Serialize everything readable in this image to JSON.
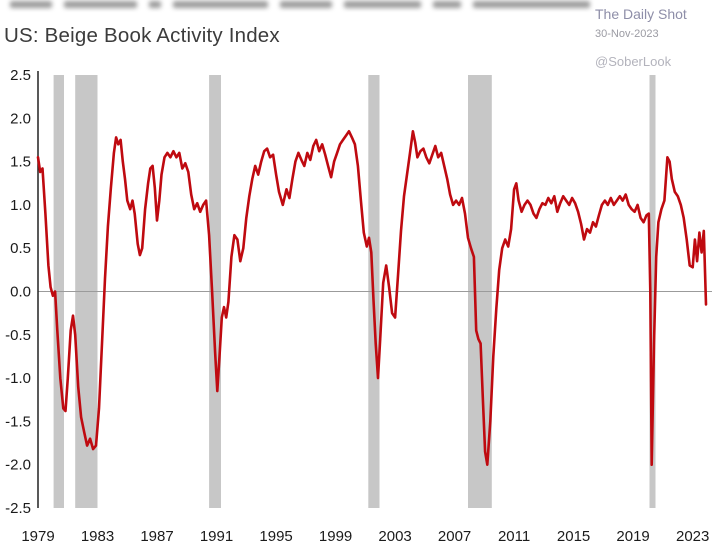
{
  "header": {
    "title": "US: Beige Book Activity Index",
    "source": "The Daily Shot",
    "date": "30-Nov-2023",
    "handle": "@SoberLook"
  },
  "chart_data": {
    "type": "line",
    "title": "US: Beige Book Activity Index",
    "xlabel": "",
    "ylabel": "",
    "xlim": [
      1979,
      2024.3
    ],
    "ylim": [
      -2.5,
      2.5
    ],
    "grid": false,
    "zero_line": true,
    "legend": "none",
    "band_color": "#c7c7c7",
    "x_ticks": [
      {
        "label": "1979",
        "value": 1979
      },
      {
        "label": "1983",
        "value": 1983
      },
      {
        "label": "1987",
        "value": 1987
      },
      {
        "label": "1991",
        "value": 1991
      },
      {
        "label": "1995",
        "value": 1995
      },
      {
        "label": "1999",
        "value": 1999
      },
      {
        "label": "2003",
        "value": 2003
      },
      {
        "label": "2007",
        "value": 2007
      },
      {
        "label": "2011",
        "value": 2011
      },
      {
        "label": "2015",
        "value": 2015
      },
      {
        "label": "2019",
        "value": 2019
      },
      {
        "label": "2023",
        "value": 2023
      }
    ],
    "y_ticks": [
      {
        "label": "2.5",
        "value": 2.5
      },
      {
        "label": "2.0",
        "value": 2.0
      },
      {
        "label": "1.5",
        "value": 1.5
      },
      {
        "label": "1.0",
        "value": 1.0
      },
      {
        "label": "0.5",
        "value": 0.5
      },
      {
        "label": "0.0",
        "value": 0.0
      },
      {
        "label": "-0.5",
        "value": -0.5
      },
      {
        "label": "-1.0",
        "value": -1.0
      },
      {
        "label": "-1.5",
        "value": -1.5
      },
      {
        "label": "-2.0",
        "value": -2.0
      },
      {
        "label": "-2.5",
        "value": -2.5
      }
    ],
    "recession_bands": [
      [
        1980.05,
        1980.75
      ],
      [
        1981.5,
        1983.0
      ],
      [
        1990.5,
        1991.3
      ],
      [
        2001.2,
        2001.95
      ],
      [
        2007.9,
        2009.5
      ],
      [
        2020.1,
        2020.5
      ]
    ],
    "series": [
      {
        "name": "Beige Book Activity Index",
        "color": "#bf0a10",
        "points": [
          [
            1979.0,
            1.55
          ],
          [
            1979.15,
            1.38
          ],
          [
            1979.3,
            1.42
          ],
          [
            1979.5,
            0.9
          ],
          [
            1979.7,
            0.3
          ],
          [
            1979.85,
            0.05
          ],
          [
            1980.0,
            -0.05
          ],
          [
            1980.15,
            0.0
          ],
          [
            1980.3,
            -0.45
          ],
          [
            1980.5,
            -1.0
          ],
          [
            1980.7,
            -1.35
          ],
          [
            1980.85,
            -1.38
          ],
          [
            1981.0,
            -1.0
          ],
          [
            1981.2,
            -0.45
          ],
          [
            1981.35,
            -0.28
          ],
          [
            1981.5,
            -0.5
          ],
          [
            1981.7,
            -1.1
          ],
          [
            1981.9,
            -1.45
          ],
          [
            1982.1,
            -1.62
          ],
          [
            1982.3,
            -1.78
          ],
          [
            1982.5,
            -1.7
          ],
          [
            1982.7,
            -1.82
          ],
          [
            1982.9,
            -1.78
          ],
          [
            1983.1,
            -1.35
          ],
          [
            1983.3,
            -0.6
          ],
          [
            1983.5,
            0.15
          ],
          [
            1983.7,
            0.75
          ],
          [
            1983.9,
            1.2
          ],
          [
            1984.1,
            1.6
          ],
          [
            1984.25,
            1.78
          ],
          [
            1984.4,
            1.7
          ],
          [
            1984.55,
            1.75
          ],
          [
            1984.7,
            1.5
          ],
          [
            1984.85,
            1.3
          ],
          [
            1985.0,
            1.05
          ],
          [
            1985.2,
            0.95
          ],
          [
            1985.35,
            1.05
          ],
          [
            1985.5,
            0.9
          ],
          [
            1985.7,
            0.55
          ],
          [
            1985.85,
            0.42
          ],
          [
            1986.0,
            0.5
          ],
          [
            1986.2,
            0.95
          ],
          [
            1986.4,
            1.25
          ],
          [
            1986.55,
            1.42
          ],
          [
            1986.7,
            1.45
          ],
          [
            1986.85,
            1.2
          ],
          [
            1987.0,
            0.82
          ],
          [
            1987.15,
            1.05
          ],
          [
            1987.3,
            1.35
          ],
          [
            1987.5,
            1.55
          ],
          [
            1987.7,
            1.6
          ],
          [
            1987.9,
            1.55
          ],
          [
            1988.1,
            1.62
          ],
          [
            1988.3,
            1.55
          ],
          [
            1988.5,
            1.6
          ],
          [
            1988.7,
            1.42
          ],
          [
            1988.9,
            1.48
          ],
          [
            1989.1,
            1.38
          ],
          [
            1989.3,
            1.12
          ],
          [
            1989.5,
            0.95
          ],
          [
            1989.7,
            1.02
          ],
          [
            1989.9,
            0.92
          ],
          [
            1990.1,
            1.0
          ],
          [
            1990.3,
            1.05
          ],
          [
            1990.5,
            0.65
          ],
          [
            1990.7,
            0.0
          ],
          [
            1990.9,
            -0.7
          ],
          [
            1991.05,
            -1.15
          ],
          [
            1991.2,
            -0.75
          ],
          [
            1991.35,
            -0.3
          ],
          [
            1991.5,
            -0.18
          ],
          [
            1991.65,
            -0.3
          ],
          [
            1991.8,
            -0.12
          ],
          [
            1992.0,
            0.4
          ],
          [
            1992.2,
            0.65
          ],
          [
            1992.4,
            0.6
          ],
          [
            1992.6,
            0.35
          ],
          [
            1992.8,
            0.5
          ],
          [
            1993.0,
            0.85
          ],
          [
            1993.2,
            1.1
          ],
          [
            1993.4,
            1.3
          ],
          [
            1993.6,
            1.45
          ],
          [
            1993.8,
            1.35
          ],
          [
            1994.0,
            1.5
          ],
          [
            1994.2,
            1.62
          ],
          [
            1994.4,
            1.65
          ],
          [
            1994.6,
            1.55
          ],
          [
            1994.8,
            1.58
          ],
          [
            1995.0,
            1.35
          ],
          [
            1995.2,
            1.15
          ],
          [
            1995.45,
            1.0
          ],
          [
            1995.7,
            1.18
          ],
          [
            1995.9,
            1.08
          ],
          [
            1996.1,
            1.3
          ],
          [
            1996.3,
            1.5
          ],
          [
            1996.5,
            1.6
          ],
          [
            1996.7,
            1.52
          ],
          [
            1996.9,
            1.45
          ],
          [
            1997.1,
            1.6
          ],
          [
            1997.3,
            1.52
          ],
          [
            1997.5,
            1.68
          ],
          [
            1997.7,
            1.75
          ],
          [
            1997.9,
            1.62
          ],
          [
            1998.1,
            1.7
          ],
          [
            1998.3,
            1.58
          ],
          [
            1998.5,
            1.45
          ],
          [
            1998.7,
            1.32
          ],
          [
            1998.9,
            1.5
          ],
          [
            1999.1,
            1.6
          ],
          [
            1999.3,
            1.7
          ],
          [
            1999.5,
            1.75
          ],
          [
            1999.7,
            1.8
          ],
          [
            1999.9,
            1.85
          ],
          [
            2000.1,
            1.78
          ],
          [
            2000.3,
            1.7
          ],
          [
            2000.5,
            1.45
          ],
          [
            2000.7,
            1.05
          ],
          [
            2000.9,
            0.68
          ],
          [
            2001.1,
            0.52
          ],
          [
            2001.25,
            0.62
          ],
          [
            2001.4,
            0.45
          ],
          [
            2001.55,
            -0.1
          ],
          [
            2001.7,
            -0.6
          ],
          [
            2001.85,
            -1.0
          ],
          [
            2002.0,
            -0.55
          ],
          [
            2002.2,
            0.1
          ],
          [
            2002.4,
            0.3
          ],
          [
            2002.6,
            0.05
          ],
          [
            2002.8,
            -0.25
          ],
          [
            2003.0,
            -0.3
          ],
          [
            2003.2,
            0.2
          ],
          [
            2003.4,
            0.7
          ],
          [
            2003.6,
            1.1
          ],
          [
            2003.8,
            1.35
          ],
          [
            2004.0,
            1.6
          ],
          [
            2004.2,
            1.85
          ],
          [
            2004.35,
            1.72
          ],
          [
            2004.5,
            1.55
          ],
          [
            2004.7,
            1.62
          ],
          [
            2004.9,
            1.65
          ],
          [
            2005.1,
            1.55
          ],
          [
            2005.3,
            1.48
          ],
          [
            2005.5,
            1.58
          ],
          [
            2005.7,
            1.68
          ],
          [
            2005.9,
            1.55
          ],
          [
            2006.1,
            1.6
          ],
          [
            2006.3,
            1.45
          ],
          [
            2006.5,
            1.3
          ],
          [
            2006.7,
            1.12
          ],
          [
            2006.9,
            1.0
          ],
          [
            2007.1,
            1.05
          ],
          [
            2007.3,
            1.0
          ],
          [
            2007.5,
            1.08
          ],
          [
            2007.7,
            0.9
          ],
          [
            2007.9,
            0.62
          ],
          [
            2008.1,
            0.5
          ],
          [
            2008.3,
            0.4
          ],
          [
            2008.45,
            -0.45
          ],
          [
            2008.6,
            -0.55
          ],
          [
            2008.75,
            -0.6
          ],
          [
            2008.9,
            -1.25
          ],
          [
            2009.05,
            -1.85
          ],
          [
            2009.2,
            -2.0
          ],
          [
            2009.4,
            -1.5
          ],
          [
            2009.6,
            -0.75
          ],
          [
            2009.8,
            -0.2
          ],
          [
            2010.0,
            0.25
          ],
          [
            2010.2,
            0.5
          ],
          [
            2010.4,
            0.6
          ],
          [
            2010.6,
            0.52
          ],
          [
            2010.8,
            0.72
          ],
          [
            2011.0,
            1.18
          ],
          [
            2011.15,
            1.25
          ],
          [
            2011.3,
            1.05
          ],
          [
            2011.5,
            0.92
          ],
          [
            2011.7,
            1.0
          ],
          [
            2011.9,
            1.05
          ],
          [
            2012.1,
            1.0
          ],
          [
            2012.3,
            0.9
          ],
          [
            2012.5,
            0.85
          ],
          [
            2012.7,
            0.95
          ],
          [
            2012.9,
            1.02
          ],
          [
            2013.1,
            1.0
          ],
          [
            2013.3,
            1.08
          ],
          [
            2013.5,
            1.02
          ],
          [
            2013.7,
            1.1
          ],
          [
            2013.9,
            0.92
          ],
          [
            2014.1,
            1.02
          ],
          [
            2014.3,
            1.1
          ],
          [
            2014.5,
            1.05
          ],
          [
            2014.7,
            1.0
          ],
          [
            2014.9,
            1.08
          ],
          [
            2015.1,
            1.02
          ],
          [
            2015.3,
            0.92
          ],
          [
            2015.5,
            0.78
          ],
          [
            2015.7,
            0.6
          ],
          [
            2015.9,
            0.72
          ],
          [
            2016.1,
            0.68
          ],
          [
            2016.3,
            0.8
          ],
          [
            2016.5,
            0.75
          ],
          [
            2016.7,
            0.88
          ],
          [
            2016.9,
            1.0
          ],
          [
            2017.1,
            1.05
          ],
          [
            2017.3,
            1.0
          ],
          [
            2017.5,
            1.08
          ],
          [
            2017.7,
            1.0
          ],
          [
            2017.9,
            1.05
          ],
          [
            2018.1,
            1.1
          ],
          [
            2018.3,
            1.05
          ],
          [
            2018.5,
            1.12
          ],
          [
            2018.7,
            1.0
          ],
          [
            2018.9,
            0.95
          ],
          [
            2019.1,
            0.92
          ],
          [
            2019.3,
            1.0
          ],
          [
            2019.5,
            0.85
          ],
          [
            2019.7,
            0.8
          ],
          [
            2019.9,
            0.88
          ],
          [
            2020.05,
            0.9
          ],
          [
            2020.15,
            0.0
          ],
          [
            2020.25,
            -2.0
          ],
          [
            2020.4,
            -0.6
          ],
          [
            2020.55,
            0.4
          ],
          [
            2020.7,
            0.8
          ],
          [
            2020.9,
            0.95
          ],
          [
            2021.1,
            1.05
          ],
          [
            2021.3,
            1.55
          ],
          [
            2021.45,
            1.5
          ],
          [
            2021.6,
            1.3
          ],
          [
            2021.8,
            1.15
          ],
          [
            2022.0,
            1.1
          ],
          [
            2022.2,
            1.0
          ],
          [
            2022.4,
            0.85
          ],
          [
            2022.6,
            0.6
          ],
          [
            2022.8,
            0.3
          ],
          [
            2023.0,
            0.28
          ],
          [
            2023.15,
            0.6
          ],
          [
            2023.3,
            0.35
          ],
          [
            2023.45,
            0.68
          ],
          [
            2023.6,
            0.45
          ],
          [
            2023.75,
            0.7
          ],
          [
            2023.9,
            -0.15
          ]
        ]
      }
    ]
  }
}
